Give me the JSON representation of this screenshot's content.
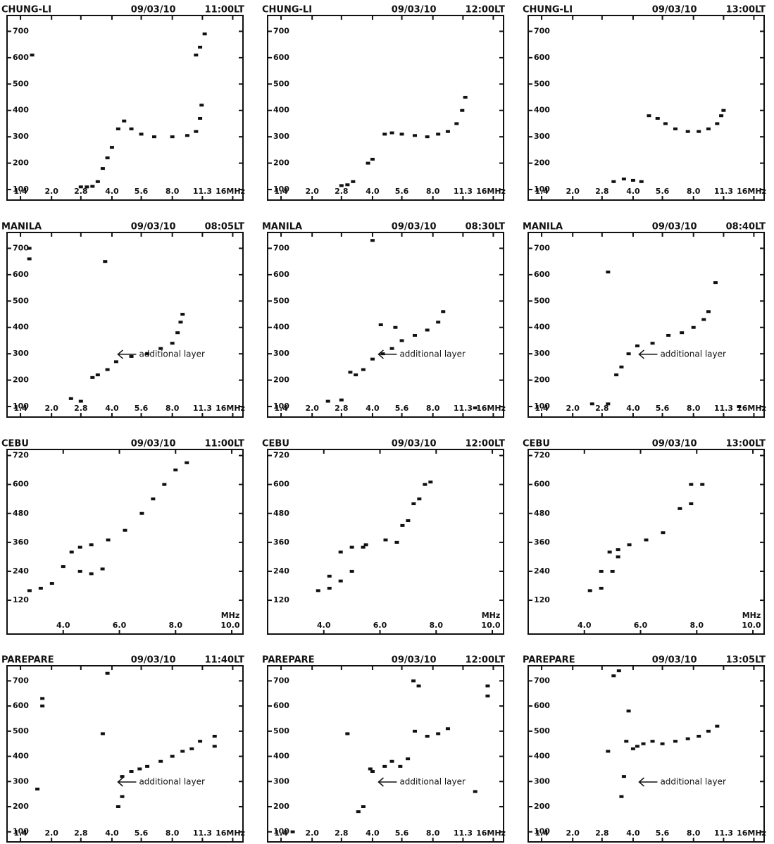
{
  "chart_data": [
    {
      "type": "scatter",
      "title": "CHUNG-LI",
      "date": "09/03/10",
      "time": "11:00LT",
      "x_scale": "log",
      "x": [
        1.6,
        2.8,
        3.0,
        3.2,
        3.4,
        3.6,
        3.8,
        4.0,
        4.3,
        4.6,
        5.0,
        5.6,
        6.5,
        8.0,
        9.5,
        10.5,
        11.0,
        11.2,
        10.5,
        11.0,
        11.6
      ],
      "values": [
        610,
        110,
        110,
        112,
        130,
        180,
        220,
        260,
        330,
        360,
        330,
        310,
        300,
        300,
        305,
        320,
        370,
        420,
        610,
        640,
        690
      ],
      "xlim": [
        1.2,
        18
      ],
      "ylim": [
        60,
        760
      ],
      "xticks": [
        1.4,
        {
          "value": 2.0,
          "label": "2.0"
        },
        2.8,
        {
          "value": 4.0,
          "label": "4.0"
        },
        5.6,
        {
          "value": 8.0,
          "label": "8.0"
        },
        11.3,
        {
          "value": 16,
          "label": "16MHz"
        }
      ],
      "yticks": [
        100,
        200,
        300,
        400,
        500,
        600,
        700
      ],
      "color": "#111111"
    },
    {
      "type": "scatter",
      "title": "CHUNG-LI",
      "date": "09/03/10",
      "time": "12:00LT",
      "x_scale": "log",
      "x": [
        2.8,
        3.0,
        3.2,
        3.8,
        4.0,
        4.6,
        5.0,
        5.6,
        6.5,
        7.5,
        8.5,
        9.5,
        10.5,
        11.2,
        11.6
      ],
      "values": [
        115,
        118,
        130,
        200,
        215,
        310,
        315,
        310,
        305,
        300,
        310,
        320,
        350,
        400,
        450
      ],
      "xlim": [
        1.2,
        18
      ],
      "ylim": [
        60,
        760
      ],
      "xticks": [
        1.4,
        {
          "value": 2.0,
          "label": "2.0"
        },
        2.8,
        {
          "value": 4.0,
          "label": "4.0"
        },
        5.6,
        {
          "value": 8.0,
          "label": "8.0"
        },
        11.3,
        {
          "value": 16,
          "label": "16MHz"
        }
      ],
      "yticks": [
        100,
        200,
        300,
        400,
        500,
        600,
        700
      ],
      "color": "#111111"
    },
    {
      "type": "scatter",
      "title": "CHUNG-LI",
      "date": "09/03/10",
      "time": "13:00LT",
      "x_scale": "log",
      "x": [
        3.2,
        3.6,
        4.0,
        4.4,
        4.8,
        5.3,
        5.8,
        6.5,
        7.5,
        8.5,
        9.5,
        10.5,
        11.0,
        11.3
      ],
      "values": [
        130,
        140,
        135,
        130,
        380,
        370,
        350,
        330,
        320,
        320,
        330,
        350,
        380,
        400
      ],
      "xlim": [
        1.2,
        18
      ],
      "ylim": [
        60,
        760
      ],
      "xticks": [
        1.4,
        {
          "value": 2.0,
          "label": "2.0"
        },
        2.8,
        {
          "value": 4.0,
          "label": "4.0"
        },
        5.6,
        {
          "value": 8.0,
          "label": "8.0"
        },
        11.3,
        {
          "value": 16,
          "label": "16MHz"
        }
      ],
      "yticks": [
        100,
        200,
        300,
        400,
        500,
        600,
        700
      ],
      "color": "#111111"
    },
    {
      "type": "scatter",
      "title": "MANILA",
      "date": "09/03/10",
      "time": "08:05LT",
      "x_scale": "log",
      "annotation": "additional layer",
      "x": [
        1.55,
        1.55,
        3.7,
        2.5,
        2.8,
        3.2,
        3.4,
        3.8,
        4.2,
        5.0,
        6.0,
        7.0,
        8.0,
        8.5,
        8.8,
        9.0
      ],
      "values": [
        660,
        700,
        650,
        130,
        120,
        210,
        220,
        240,
        270,
        290,
        300,
        320,
        340,
        380,
        420,
        450
      ],
      "xlim": [
        1.2,
        18
      ],
      "ylim": [
        60,
        760
      ],
      "xticks": [
        1.4,
        {
          "value": 2.0,
          "label": "2.0"
        },
        2.8,
        {
          "value": 4.0,
          "label": "4.0"
        },
        5.6,
        {
          "value": 8.0,
          "label": "8.0"
        },
        11.3,
        {
          "value": 16,
          "label": "16MHz"
        }
      ],
      "yticks": [
        100,
        200,
        300,
        400,
        500,
        600,
        700
      ],
      "color": "#111111"
    },
    {
      "type": "scatter",
      "title": "MANILA",
      "date": "09/03/10",
      "time": "08:30LT",
      "x_scale": "log",
      "annotation": "additional layer",
      "x": [
        2.4,
        2.8,
        3.1,
        3.3,
        3.6,
        4.0,
        4.5,
        5.0,
        5.6,
        6.5,
        7.5,
        8.5,
        9.0,
        4.0,
        4.4,
        5.2,
        13
      ],
      "values": [
        120,
        125,
        230,
        220,
        240,
        280,
        300,
        320,
        350,
        370,
        390,
        420,
        460,
        730,
        410,
        400,
        95
      ],
      "xlim": [
        1.2,
        18
      ],
      "ylim": [
        60,
        760
      ],
      "xticks": [
        1.4,
        {
          "value": 2.0,
          "label": "2.0"
        },
        2.8,
        {
          "value": 4.0,
          "label": "4.0"
        },
        5.6,
        {
          "value": 8.0,
          "label": "8.0"
        },
        11.3,
        {
          "value": 16,
          "label": "16MHz"
        }
      ],
      "yticks": [
        100,
        200,
        300,
        400,
        500,
        600,
        700
      ],
      "color": "#111111"
    },
    {
      "type": "scatter",
      "title": "MANILA",
      "date": "09/03/10",
      "time": "08:40LT",
      "x_scale": "log",
      "annotation": "additional layer",
      "x": [
        2.5,
        3.0,
        3.3,
        3.5,
        3.8,
        4.2,
        5.0,
        6.0,
        7.0,
        8.0,
        9.0,
        9.5,
        10.3,
        3.0,
        13.5
      ],
      "values": [
        110,
        110,
        220,
        250,
        300,
        330,
        340,
        370,
        380,
        400,
        430,
        460,
        570,
        610,
        100
      ],
      "xlim": [
        1.2,
        18
      ],
      "ylim": [
        60,
        760
      ],
      "xticks": [
        1.4,
        {
          "value": 2.0,
          "label": "2.0"
        },
        2.8,
        {
          "value": 4.0,
          "label": "4.0"
        },
        5.6,
        {
          "value": 8.0,
          "label": "8.0"
        },
        11.3,
        {
          "value": 16,
          "label": "16MHz"
        }
      ],
      "yticks": [
        100,
        200,
        300,
        400,
        500,
        600,
        700
      ],
      "color": "#111111"
    },
    {
      "type": "scatter",
      "title": "CEBU",
      "date": "09/03/10",
      "time": "11:00LT",
      "x_scale": "linear",
      "x_unit": "MHz",
      "x": [
        2.8,
        3.2,
        3.6,
        4.0,
        4.3,
        4.6,
        5.0,
        5.6,
        6.2,
        6.8,
        7.2,
        7.6,
        8.0,
        8.4,
        4.6,
        5.0,
        5.4
      ],
      "values": [
        160,
        170,
        190,
        260,
        320,
        340,
        350,
        370,
        410,
        480,
        540,
        600,
        660,
        690,
        240,
        230,
        250
      ],
      "xlim": [
        2.0,
        10.4
      ],
      "ylim": [
        -20,
        745
      ],
      "xticks": [
        {
          "value": 4.0,
          "label": "4.0"
        },
        {
          "value": 6.0,
          "label": "6.0"
        },
        {
          "value": 8.0,
          "label": "8.0"
        },
        {
          "value": 10.0,
          "label": "10.0"
        }
      ],
      "yticks": [
        120,
        240,
        360,
        480,
        600,
        720
      ],
      "color": "#111111"
    },
    {
      "type": "scatter",
      "title": "CEBU",
      "date": "09/03/10",
      "time": "12:00LT",
      "x_scale": "linear",
      "x_unit": "MHz",
      "x": [
        3.8,
        4.2,
        4.6,
        5.0,
        5.5,
        6.2,
        6.8,
        7.2,
        7.6,
        4.2,
        4.6,
        5.0,
        5.4,
        6.6,
        7.0,
        7.4,
        7.8
      ],
      "values": [
        160,
        220,
        320,
        340,
        350,
        370,
        430,
        520,
        600,
        170,
        200,
        240,
        340,
        360,
        450,
        540,
        610
      ],
      "xlim": [
        2.0,
        10.4
      ],
      "ylim": [
        -20,
        745
      ],
      "xticks": [
        {
          "value": 4.0,
          "label": "4.0"
        },
        {
          "value": 6.0,
          "label": "6.0"
        },
        {
          "value": 8.0,
          "label": "8.0"
        },
        {
          "value": 10.0,
          "label": "10.0"
        }
      ],
      "yticks": [
        120,
        240,
        360,
        480,
        600,
        720
      ],
      "color": "#111111"
    },
    {
      "type": "scatter",
      "title": "CEBU",
      "date": "09/03/10",
      "time": "13:00LT",
      "x_scale": "linear",
      "x_unit": "MHz",
      "x": [
        4.2,
        4.6,
        4.9,
        5.2,
        5.6,
        6.2,
        6.8,
        7.4,
        7.8,
        4.6,
        5.0,
        5.2,
        7.8,
        8.2
      ],
      "values": [
        160,
        240,
        320,
        330,
        350,
        370,
        400,
        500,
        600,
        170,
        240,
        300,
        520,
        600
      ],
      "xlim": [
        2.0,
        10.4
      ],
      "ylim": [
        -20,
        745
      ],
      "xticks": [
        {
          "value": 4.0,
          "label": "4.0"
        },
        {
          "value": 6.0,
          "label": "6.0"
        },
        {
          "value": 8.0,
          "label": "8.0"
        },
        {
          "value": 10.0,
          "label": "10.0"
        }
      ],
      "yticks": [
        120,
        240,
        360,
        480,
        600,
        720
      ],
      "color": "#111111"
    },
    {
      "type": "scatter",
      "title": "PAREPARE",
      "date": "09/03/10",
      "time": "11:40LT",
      "x_scale": "log",
      "annotation": "additional layer",
      "x": [
        1.8,
        1.8,
        3.8,
        1.7,
        3.6,
        4.3,
        4.5,
        4.5,
        5.0,
        5.5,
        6.0,
        7.0,
        8.0,
        9.0,
        10.0,
        11.0,
        13.0,
        13.0
      ],
      "values": [
        600,
        630,
        730,
        270,
        490,
        200,
        240,
        320,
        340,
        350,
        360,
        380,
        400,
        420,
        430,
        460,
        440,
        480
      ],
      "xlim": [
        1.2,
        18
      ],
      "ylim": [
        60,
        760
      ],
      "xticks": [
        1.4,
        {
          "value": 2.0,
          "label": "2.0"
        },
        2.8,
        {
          "value": 4.0,
          "label": "4.0"
        },
        5.6,
        {
          "value": 8.0,
          "label": "8.0"
        },
        11.3,
        {
          "value": 16,
          "label": "16MHz"
        }
      ],
      "yticks": [
        100,
        200,
        300,
        400,
        500,
        600,
        700
      ],
      "color": "#111111"
    },
    {
      "type": "scatter",
      "title": "PAREPARE",
      "date": "09/03/10",
      "time": "12:00LT",
      "x_scale": "log",
      "annotation": "additional layer",
      "x": [
        3.4,
        3.6,
        3.9,
        4.0,
        4.6,
        5.0,
        5.5,
        6.0,
        6.5,
        7.5,
        8.5,
        9.5,
        6.4,
        6.8,
        15,
        15,
        3.0,
        13,
        1.6
      ],
      "values": [
        180,
        200,
        350,
        340,
        360,
        380,
        360,
        390,
        500,
        480,
        490,
        510,
        700,
        680,
        680,
        640,
        490,
        260,
        100
      ],
      "xlim": [
        1.2,
        18
      ],
      "ylim": [
        60,
        760
      ],
      "xticks": [
        1.4,
        {
          "value": 2.0,
          "label": "2.0"
        },
        2.8,
        {
          "value": 4.0,
          "label": "4.0"
        },
        5.6,
        {
          "value": 8.0,
          "label": "8.0"
        },
        11.3,
        {
          "value": 16,
          "label": "16MHz"
        }
      ],
      "yticks": [
        100,
        200,
        300,
        400,
        500,
        600,
        700
      ],
      "color": "#111111"
    },
    {
      "type": "scatter",
      "title": "PAREPARE",
      "date": "09/03/10",
      "time": "13:05LT",
      "x_scale": "log",
      "annotation": "additional layer",
      "x": [
        3.2,
        3.4,
        3.7,
        4.0,
        4.2,
        4.5,
        5.0,
        5.6,
        6.5,
        7.5,
        8.5,
        9.5,
        10.5,
        3.8,
        3.0,
        3.6,
        3.5
      ],
      "values": [
        720,
        740,
        460,
        430,
        440,
        450,
        460,
        450,
        460,
        470,
        480,
        500,
        520,
        580,
        420,
        320,
        240
      ],
      "xlim": [
        1.2,
        18
      ],
      "ylim": [
        60,
        760
      ],
      "xticks": [
        1.4,
        {
          "value": 2.0,
          "label": "2.0"
        },
        2.8,
        {
          "value": 4.0,
          "label": "4.0"
        },
        5.6,
        {
          "value": 8.0,
          "label": "8.0"
        },
        11.3,
        {
          "value": 16,
          "label": "16MHz"
        }
      ],
      "yticks": [
        100,
        200,
        300,
        400,
        500,
        600,
        700
      ],
      "color": "#111111"
    }
  ]
}
